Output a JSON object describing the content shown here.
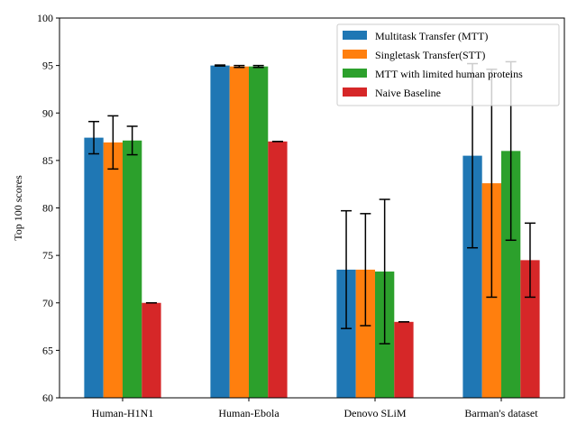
{
  "chart_data": {
    "type": "bar",
    "title": "",
    "xlabel": "",
    "ylabel": "Top 100 scores",
    "categories": [
      "Human-H1N1",
      "Human-Ebola",
      "Denovo SLiM",
      "Barman's dataset"
    ],
    "ylim": [
      60,
      100
    ],
    "yticks": [
      60,
      65,
      70,
      75,
      80,
      85,
      90,
      95,
      100
    ],
    "grid": false,
    "legend_position": "top-right",
    "series": [
      {
        "name": "Multitask Transfer (MTT)",
        "color": "#1f77b4",
        "values": [
          87.4,
          95.0,
          73.5,
          85.5
        ],
        "errors": [
          1.7,
          0.05,
          6.2,
          9.7
        ]
      },
      {
        "name": "Singletask Transfer(STT)",
        "color": "#ff7f0e",
        "values": [
          86.9,
          94.9,
          73.5,
          82.6
        ],
        "errors": [
          2.8,
          0.1,
          5.9,
          12.0
        ]
      },
      {
        "name": "MTT with limited human proteins",
        "color": "#2ca02c",
        "values": [
          87.1,
          94.9,
          73.3,
          86.0
        ],
        "errors": [
          1.5,
          0.1,
          7.6,
          9.4
        ]
      },
      {
        "name": "Naive Baseline",
        "color": "#d62728",
        "values": [
          70.0,
          87.0,
          68.0,
          74.5
        ],
        "errors": [
          0,
          0,
          0,
          3.9
        ]
      }
    ]
  }
}
